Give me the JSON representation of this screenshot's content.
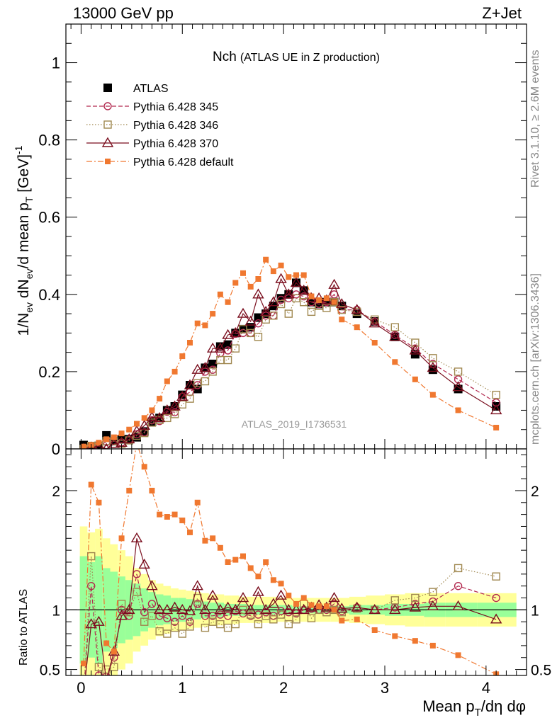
{
  "header": {
    "left": "13000 GeV pp",
    "right": "Z+Jet",
    "side_top": "Rivet 3.1.10, ≥ 2.6M events",
    "side_bottom": "mcplots.cern.ch [arXiv:1306.3436]"
  },
  "chart_data": {
    "type": "scatter",
    "title": "Nch",
    "title_suffix": "(ATLAS UE in Z production)",
    "watermark": "ATLAS_2019_I1736531",
    "ylabel_main": "1/N_ev dN_ev/d mean p_T [GeV]^-1",
    "ylabel_main_parts": {
      "a": "1/N",
      "a_sub": "ev",
      "b": " dN",
      "b_sub": "ev",
      "c": "/d mean p",
      "c_sub": "T",
      "d": " [GeV]",
      "d_sup": "-1"
    },
    "ylabel_ratio": "Ratio to ATLAS",
    "xlabel": "Mean p_T/dη dφ",
    "xlabel_parts": {
      "a": "Mean p",
      "a_sub": "T",
      "b": "/dη dφ"
    },
    "xlim": [
      -0.15,
      4.4
    ],
    "ylim_main": [
      0,
      1.1
    ],
    "ylim_ratio": [
      0.45,
      2.35
    ],
    "x_ticks": [
      "0",
      "1",
      "2",
      "3",
      "4"
    ],
    "y_ticks_main": [
      "0",
      "0.2",
      "0.4",
      "0.6",
      "0.8",
      "1"
    ],
    "y_ticks_ratio": [
      "0.5",
      "1",
      "2"
    ],
    "x": [
      0.025,
      0.1,
      0.175,
      0.25,
      0.325,
      0.4,
      0.475,
      0.55,
      0.625,
      0.7,
      0.775,
      0.85,
      0.925,
      1.0,
      1.075,
      1.15,
      1.225,
      1.3,
      1.375,
      1.45,
      1.525,
      1.6,
      1.675,
      1.75,
      1.825,
      1.9,
      1.975,
      2.05,
      2.125,
      2.2,
      2.275,
      2.35,
      2.425,
      2.5,
      2.575,
      2.725,
      2.9,
      3.1,
      3.3,
      3.475,
      3.725,
      4.1
    ],
    "series": [
      {
        "name": "ATLAS",
        "color": "#000000",
        "marker": "filled-square",
        "values": [
          0.01,
          0.005,
          0.008,
          0.035,
          0.02,
          0.025,
          0.025,
          0.03,
          0.045,
          0.07,
          0.08,
          0.1,
          0.11,
          0.14,
          0.165,
          0.155,
          0.21,
          0.22,
          0.265,
          0.27,
          0.3,
          0.31,
          0.315,
          0.34,
          0.35,
          0.37,
          0.39,
          0.4,
          0.43,
          0.41,
          0.38,
          0.375,
          0.38,
          0.38,
          0.37,
          0.35,
          0.33,
          0.29,
          0.245,
          0.205,
          0.155,
          0.11
        ]
      },
      {
        "name": "Pythia 6.428 345",
        "color": "#b2294f",
        "marker": "open-circle",
        "line": "dashed",
        "values": [
          0.0,
          0.006,
          0.0085,
          0.018,
          0.02,
          0.0165,
          0.024,
          0.038,
          0.043,
          0.074,
          0.072,
          0.096,
          0.095,
          0.135,
          0.147,
          0.165,
          0.2,
          0.205,
          0.248,
          0.255,
          0.298,
          0.3,
          0.3,
          0.325,
          0.345,
          0.345,
          0.386,
          0.39,
          0.4,
          0.395,
          0.38,
          0.375,
          0.38,
          0.4,
          0.36,
          0.36,
          0.33,
          0.295,
          0.26,
          0.22,
          0.18,
          0.12
        ]
      },
      {
        "name": "Pythia 6.428 346",
        "color": "#a08850",
        "marker": "open-square",
        "line": "dotted",
        "values": [
          0.0,
          0.008,
          0.0088,
          0.02,
          0.02,
          0.013,
          0.022,
          0.034,
          0.041,
          0.068,
          0.075,
          0.08,
          0.09,
          0.115,
          0.13,
          0.17,
          0.175,
          0.2,
          0.23,
          0.23,
          0.26,
          0.31,
          0.3,
          0.29,
          0.335,
          0.345,
          0.375,
          0.35,
          0.39,
          0.38,
          0.355,
          0.37,
          0.365,
          0.38,
          0.36,
          0.355,
          0.335,
          0.315,
          0.275,
          0.235,
          0.2,
          0.14
        ]
      },
      {
        "name": "Pythia 6.428 370",
        "color": "#7a0e1e",
        "marker": "open-triangle",
        "line": "solid",
        "values": [
          0.0,
          0.004,
          0.007,
          0.0,
          0.013,
          0.016,
          0.025,
          0.046,
          0.06,
          0.082,
          0.08,
          0.1,
          0.11,
          0.135,
          0.165,
          0.205,
          0.21,
          0.26,
          0.26,
          0.295,
          0.3,
          0.35,
          0.33,
          0.4,
          0.355,
          0.38,
          0.44,
          0.4,
          0.43,
          0.41,
          0.39,
          0.39,
          0.385,
          0.425,
          0.375,
          0.36,
          0.325,
          0.29,
          0.255,
          0.21,
          0.16,
          0.1
        ]
      },
      {
        "name": "Pythia 6.428 default",
        "color": "#f07830",
        "marker": "small-filled-square",
        "line": "dashdot",
        "values": [
          0.006,
          0.01,
          0.016,
          0.025,
          0.03,
          0.04,
          0.05,
          0.065,
          0.08,
          0.1,
          0.13,
          0.175,
          0.2,
          0.24,
          0.275,
          0.325,
          0.32,
          0.35,
          0.4,
          0.38,
          0.43,
          0.455,
          0.42,
          0.44,
          0.49,
          0.46,
          0.475,
          0.445,
          0.45,
          0.45,
          0.395,
          0.385,
          0.39,
          0.38,
          0.335,
          0.315,
          0.275,
          0.225,
          0.18,
          0.14,
          0.1,
          0.055
        ]
      }
    ],
    "ratio": {
      "band_inner": [
        0.55,
        0.6,
        0.55,
        0.65,
        0.68,
        0.72,
        0.75,
        0.78,
        0.82,
        0.85,
        0.87,
        0.88,
        0.9,
        0.9,
        0.91,
        0.92,
        0.93,
        0.94,
        0.94,
        0.95,
        0.95,
        0.95,
        0.96,
        0.96,
        0.96,
        0.96,
        0.96,
        0.96,
        0.97,
        0.97,
        0.97,
        0.97,
        0.97,
        0.97,
        0.97,
        0.96,
        0.96,
        0.95,
        0.95,
        0.94,
        0.94,
        0.94
      ],
      "band_outer": [
        0.3,
        0.35,
        0.32,
        0.4,
        0.45,
        0.5,
        0.55,
        0.65,
        0.7,
        0.75,
        0.78,
        0.8,
        0.82,
        0.83,
        0.84,
        0.85,
        0.86,
        0.87,
        0.87,
        0.88,
        0.88,
        0.89,
        0.89,
        0.89,
        0.89,
        0.89,
        0.9,
        0.9,
        0.9,
        0.9,
        0.9,
        0.9,
        0.9,
        0.9,
        0.9,
        0.89,
        0.88,
        0.87,
        0.86,
        0.86,
        0.86,
        0.86
      ],
      "values": [
        [
          0.3,
          1.2,
          0.45,
          0.44,
          0.6,
          1.0,
          0.95,
          1.3,
          0.98,
          1.05,
          0.95,
          0.93,
          0.9,
          0.95,
          0.9,
          1.05,
          0.95,
          0.95,
          0.96,
          0.95,
          0.99,
          0.97,
          0.95,
          0.96,
          0.98,
          0.95,
          0.99,
          0.98,
          0.97,
          1.0,
          1.01,
          1.0,
          1.0,
          1.05,
          0.99,
          1.02,
          1.0,
          1.02,
          1.05,
          1.07,
          1.2,
          1.1
        ],
        [
          0.3,
          1.45,
          0.52,
          0.5,
          0.52,
          1.05,
          0.98,
          1.15,
          0.9,
          0.95,
          0.82,
          0.8,
          0.85,
          0.8,
          0.86,
          1.1,
          0.85,
          0.9,
          0.88,
          0.85,
          0.88,
          1.0,
          0.96,
          0.88,
          0.95,
          0.92,
          0.96,
          0.88,
          0.92,
          1.05,
          0.93,
          1.0,
          0.98,
          1.0,
          0.98,
          1.01,
          1.0,
          1.08,
          1.1,
          1.15,
          1.35,
          1.28
        ],
        [
          0.3,
          0.88,
          0.9,
          0.4,
          0.65,
          0.95,
          1.0,
          1.6,
          1.38,
          1.2,
          1.0,
          1.0,
          1.02,
          1.0,
          0.99,
          1.2,
          1.0,
          1.12,
          1.0,
          1.02,
          1.0,
          1.1,
          1.0,
          1.15,
          1.0,
          1.05,
          1.12,
          1.0,
          1.0,
          1.0,
          1.02,
          1.04,
          1.02,
          1.1,
          1.01,
          1.02,
          1.0,
          1.0,
          1.02,
          1.03,
          1.03,
          0.92
        ],
        [
          0.55,
          2.05,
          1.9,
          0.72,
          0.65,
          1.6,
          2.0,
          2.4,
          2.2,
          2.0,
          1.8,
          1.78,
          1.8,
          1.75,
          1.65,
          1.9,
          1.58,
          1.6,
          1.52,
          1.4,
          1.42,
          1.45,
          1.35,
          1.28,
          1.4,
          1.25,
          1.22,
          1.12,
          1.05,
          1.1,
          1.04,
          1.03,
          1.03,
          1.0,
          0.91,
          0.92,
          0.83,
          0.78,
          0.74,
          0.7,
          0.62,
          0.46
        ]
      ]
    }
  }
}
